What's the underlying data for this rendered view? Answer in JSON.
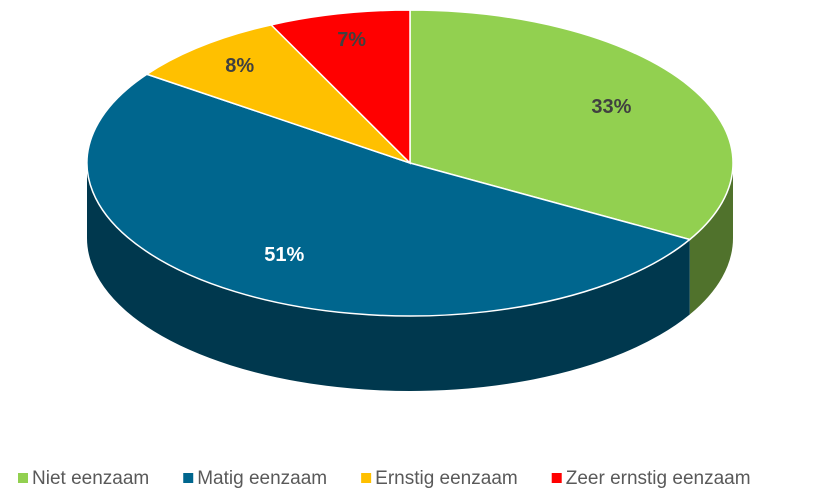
{
  "chart_data": {
    "type": "pie3d",
    "categories": [
      "Niet eenzaam",
      "Matig eenzaam",
      "Ernstig eenzaam",
      "Zeer ernstig eenzaam"
    ],
    "values": [
      33,
      51,
      8,
      7
    ],
    "value_labels": [
      "33%",
      "51%",
      "8%",
      "7%"
    ],
    "colors": [
      "#92d050",
      "#00668e",
      "#ffc000",
      "#ff0000"
    ],
    "legend": "bottom"
  }
}
